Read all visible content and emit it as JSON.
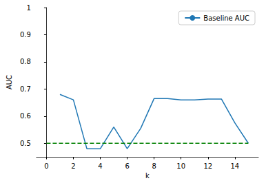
{
  "chart_data": {
    "type": "line",
    "x_label": "k",
    "y_label": "AUC",
    "xlim": [
      -0.75,
      15.75
    ],
    "xticks": [
      0,
      2,
      4,
      6,
      8,
      10,
      12,
      14
    ],
    "ylim": [
      0.45,
      1.0
    ],
    "yticks": [
      0.5,
      0.6,
      0.7,
      0.8,
      0.9,
      1.0
    ],
    "grid": false,
    "legend": "upper right",
    "series": [
      {
        "name": "Baseline AUC",
        "color": "#1f77b4",
        "line_style": "solid",
        "x": [
          1,
          2,
          3,
          4,
          5,
          6,
          7,
          8,
          9,
          10,
          11,
          12,
          13,
          14,
          15
        ],
        "values": [
          0.68,
          0.66,
          0.48,
          0.48,
          0.56,
          0.48,
          0.555,
          0.665,
          0.665,
          0.66,
          0.66,
          0.663,
          0.663,
          0.575,
          0.5
        ]
      },
      {
        "color": "#008000",
        "line_style": "dashed",
        "x": [
          0,
          15
        ],
        "values": [
          0.5,
          0.5
        ]
      }
    ]
  }
}
